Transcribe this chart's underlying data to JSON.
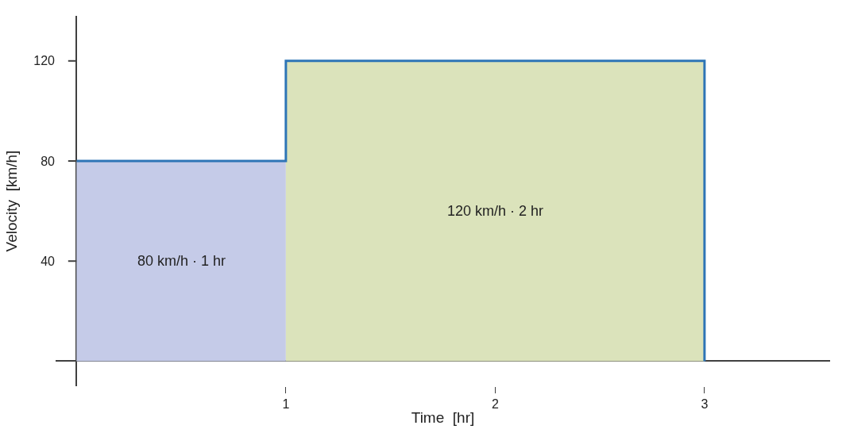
{
  "chart_data": {
    "type": "area",
    "xlabel": "Time  [hr]",
    "ylabel": "Velocity  [km/h]",
    "series": [
      {
        "color": "#c5cbe8",
        "x": [
          0,
          1
        ],
        "values": [
          80,
          80
        ]
      },
      {
        "color": "#dbe3bb",
        "x": [
          1,
          3
        ],
        "values": [
          120,
          120
        ]
      },
      {
        "type": "line",
        "color": "#2e75b6",
        "x": [
          0,
          1,
          1,
          3,
          3
        ],
        "values": [
          80,
          80,
          120,
          120,
          0
        ]
      }
    ],
    "annotations": [
      "80 km/h · 1 hr",
      "120 km/h · 2 hr"
    ],
    "xlim": [
      -0.1,
      3.6
    ],
    "ylim": [
      -10,
      138
    ],
    "xticks": [
      1,
      2,
      3
    ],
    "yticks": [
      40,
      80,
      120
    ],
    "marker": "none",
    "line_style": "solid"
  }
}
